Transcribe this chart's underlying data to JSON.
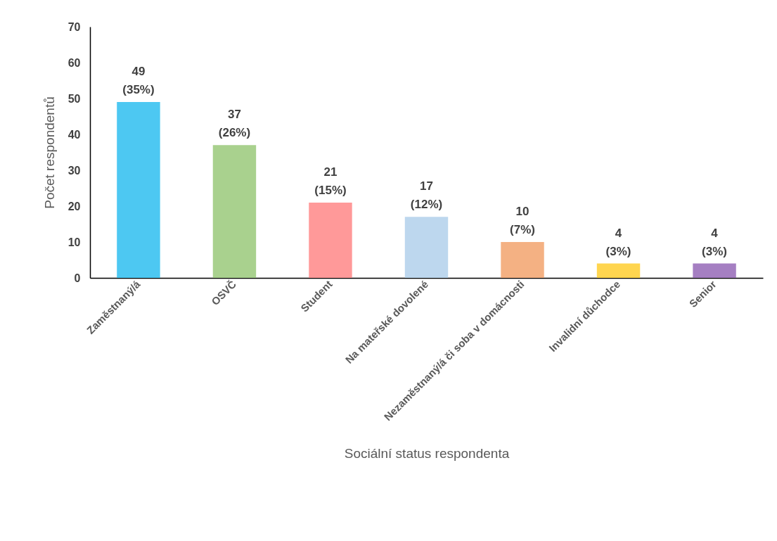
{
  "chart_data": {
    "type": "bar",
    "xlabel": "Sociální status respondenta",
    "ylabel": "Počet respondentů",
    "categories": [
      "Zaměstnaný/á",
      "OSVČ",
      "Student",
      "Na mateřské dovolené",
      "Nezaměstnaný/á či soba v domácnosti",
      "Invalidní důchodce",
      "Senior"
    ],
    "values": [
      49,
      37,
      21,
      17,
      10,
      4,
      4
    ],
    "colors": [
      "#4dc8f2",
      "#a9d18e",
      "#ff9999",
      "#bdd7ee",
      "#f4b183",
      "#ffd54f",
      "#a57fc2"
    ],
    "value_labels": [
      "49\n(35%)",
      "37\n(26%)",
      "21\n(15%)",
      "17\n(12%)",
      "10\n(7%)",
      "4\n(3%)",
      "4\n(3%)"
    ],
    "ylim": [
      0,
      70
    ],
    "yticks": [
      0,
      10,
      20,
      30,
      40,
      50,
      60,
      70
    ],
    "grid": false,
    "legend": false
  }
}
